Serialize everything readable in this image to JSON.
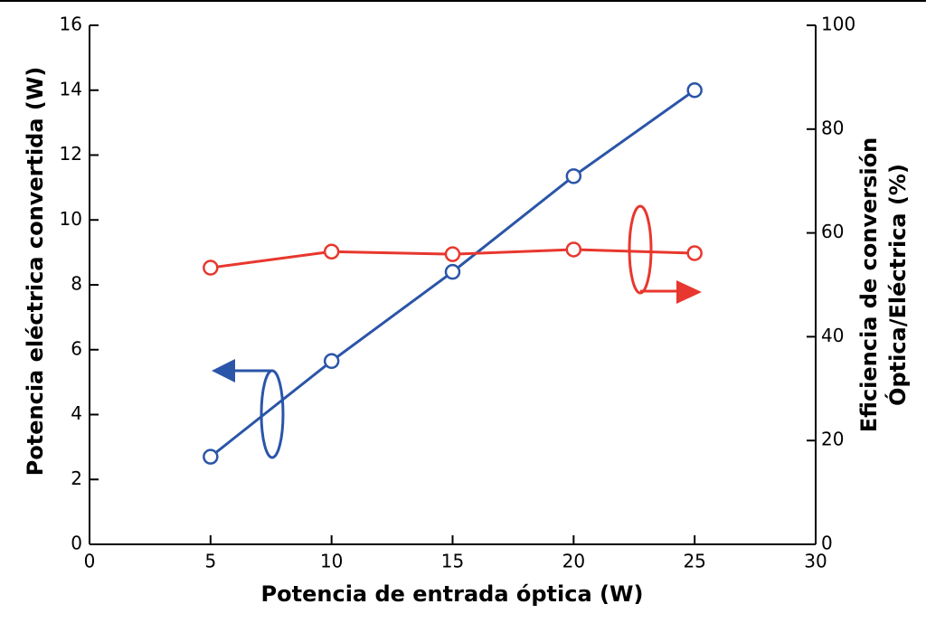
{
  "chart_data": {
    "type": "line",
    "xlabel": "Potencia de entrada óptica (W)",
    "ylabel": "Potencia eléctrica convertida (W)",
    "y2label": [
      "Eficiencia de conversión",
      "Óptica/Eléctrica (%)"
    ],
    "x": [
      5,
      10,
      15,
      20,
      25
    ],
    "series": [
      {
        "color": "#2a55a8",
        "values": [
          2.7,
          5.65,
          8.4,
          11.35,
          14.0
        ]
      },
      {
        "color": "#e8372e",
        "axis": "y2",
        "values": [
          53.3,
          56.4,
          55.9,
          56.8,
          56.1
        ]
      }
    ],
    "xlim": [
      0,
      30
    ],
    "xticks": [
      0,
      5,
      10,
      15,
      20,
      25,
      30
    ],
    "ylim": [
      0,
      16
    ],
    "yticks": [
      0,
      2,
      4,
      6,
      8,
      10,
      12,
      14,
      16
    ],
    "y2lim": [
      0,
      100
    ],
    "y2ticks": [
      0,
      20,
      40,
      60,
      80,
      100
    ]
  }
}
